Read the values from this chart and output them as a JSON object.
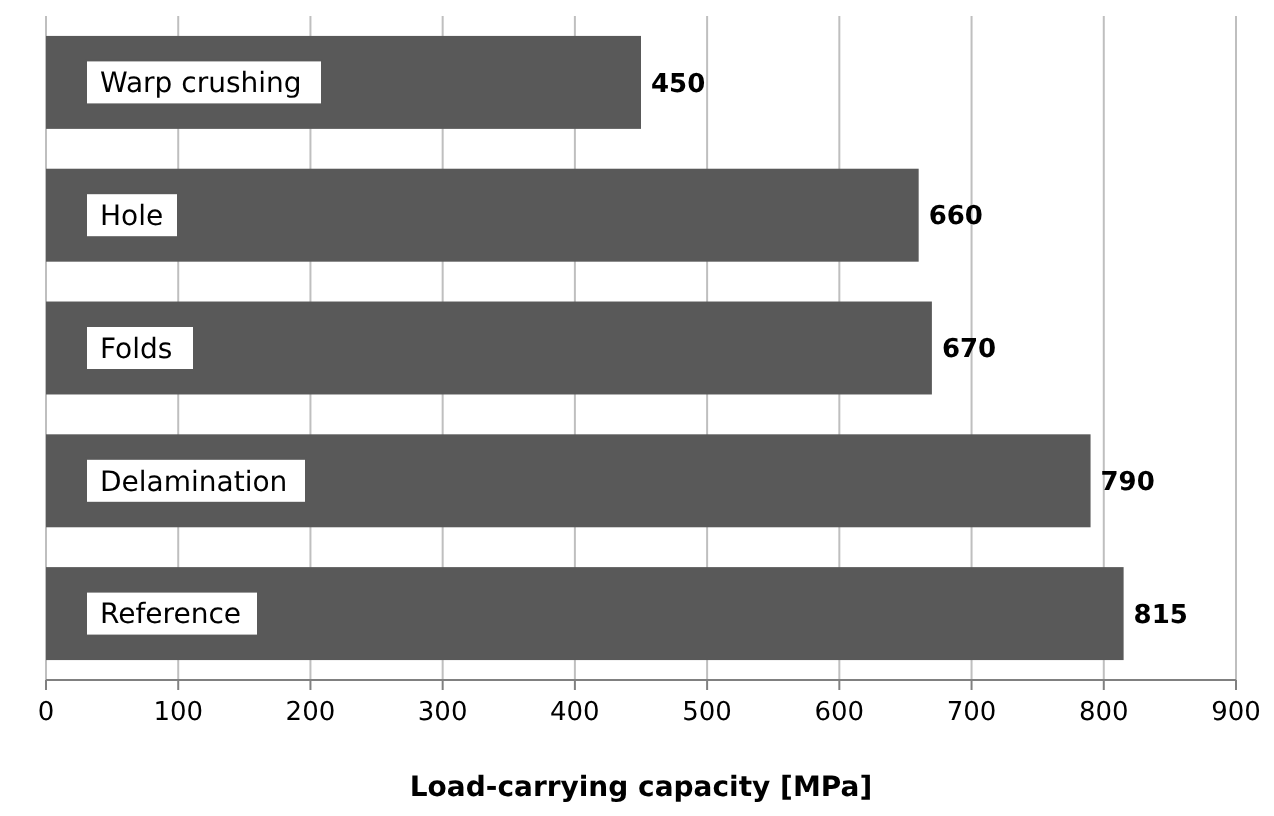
{
  "chart_data": {
    "type": "bar",
    "orientation": "horizontal",
    "xlabel": "Load-carrying capacity [MPa]",
    "categories": [
      "Warp crushing",
      "Hole",
      "Folds",
      "Delamination",
      "Reference"
    ],
    "values": [
      450,
      660,
      670,
      790,
      815
    ],
    "color": "#595959",
    "data_labels": true,
    "xlim": [
      0,
      900
    ],
    "xticks": [
      0,
      100,
      200,
      300,
      400,
      500,
      600,
      700,
      800,
      900
    ],
    "grid": "x"
  }
}
